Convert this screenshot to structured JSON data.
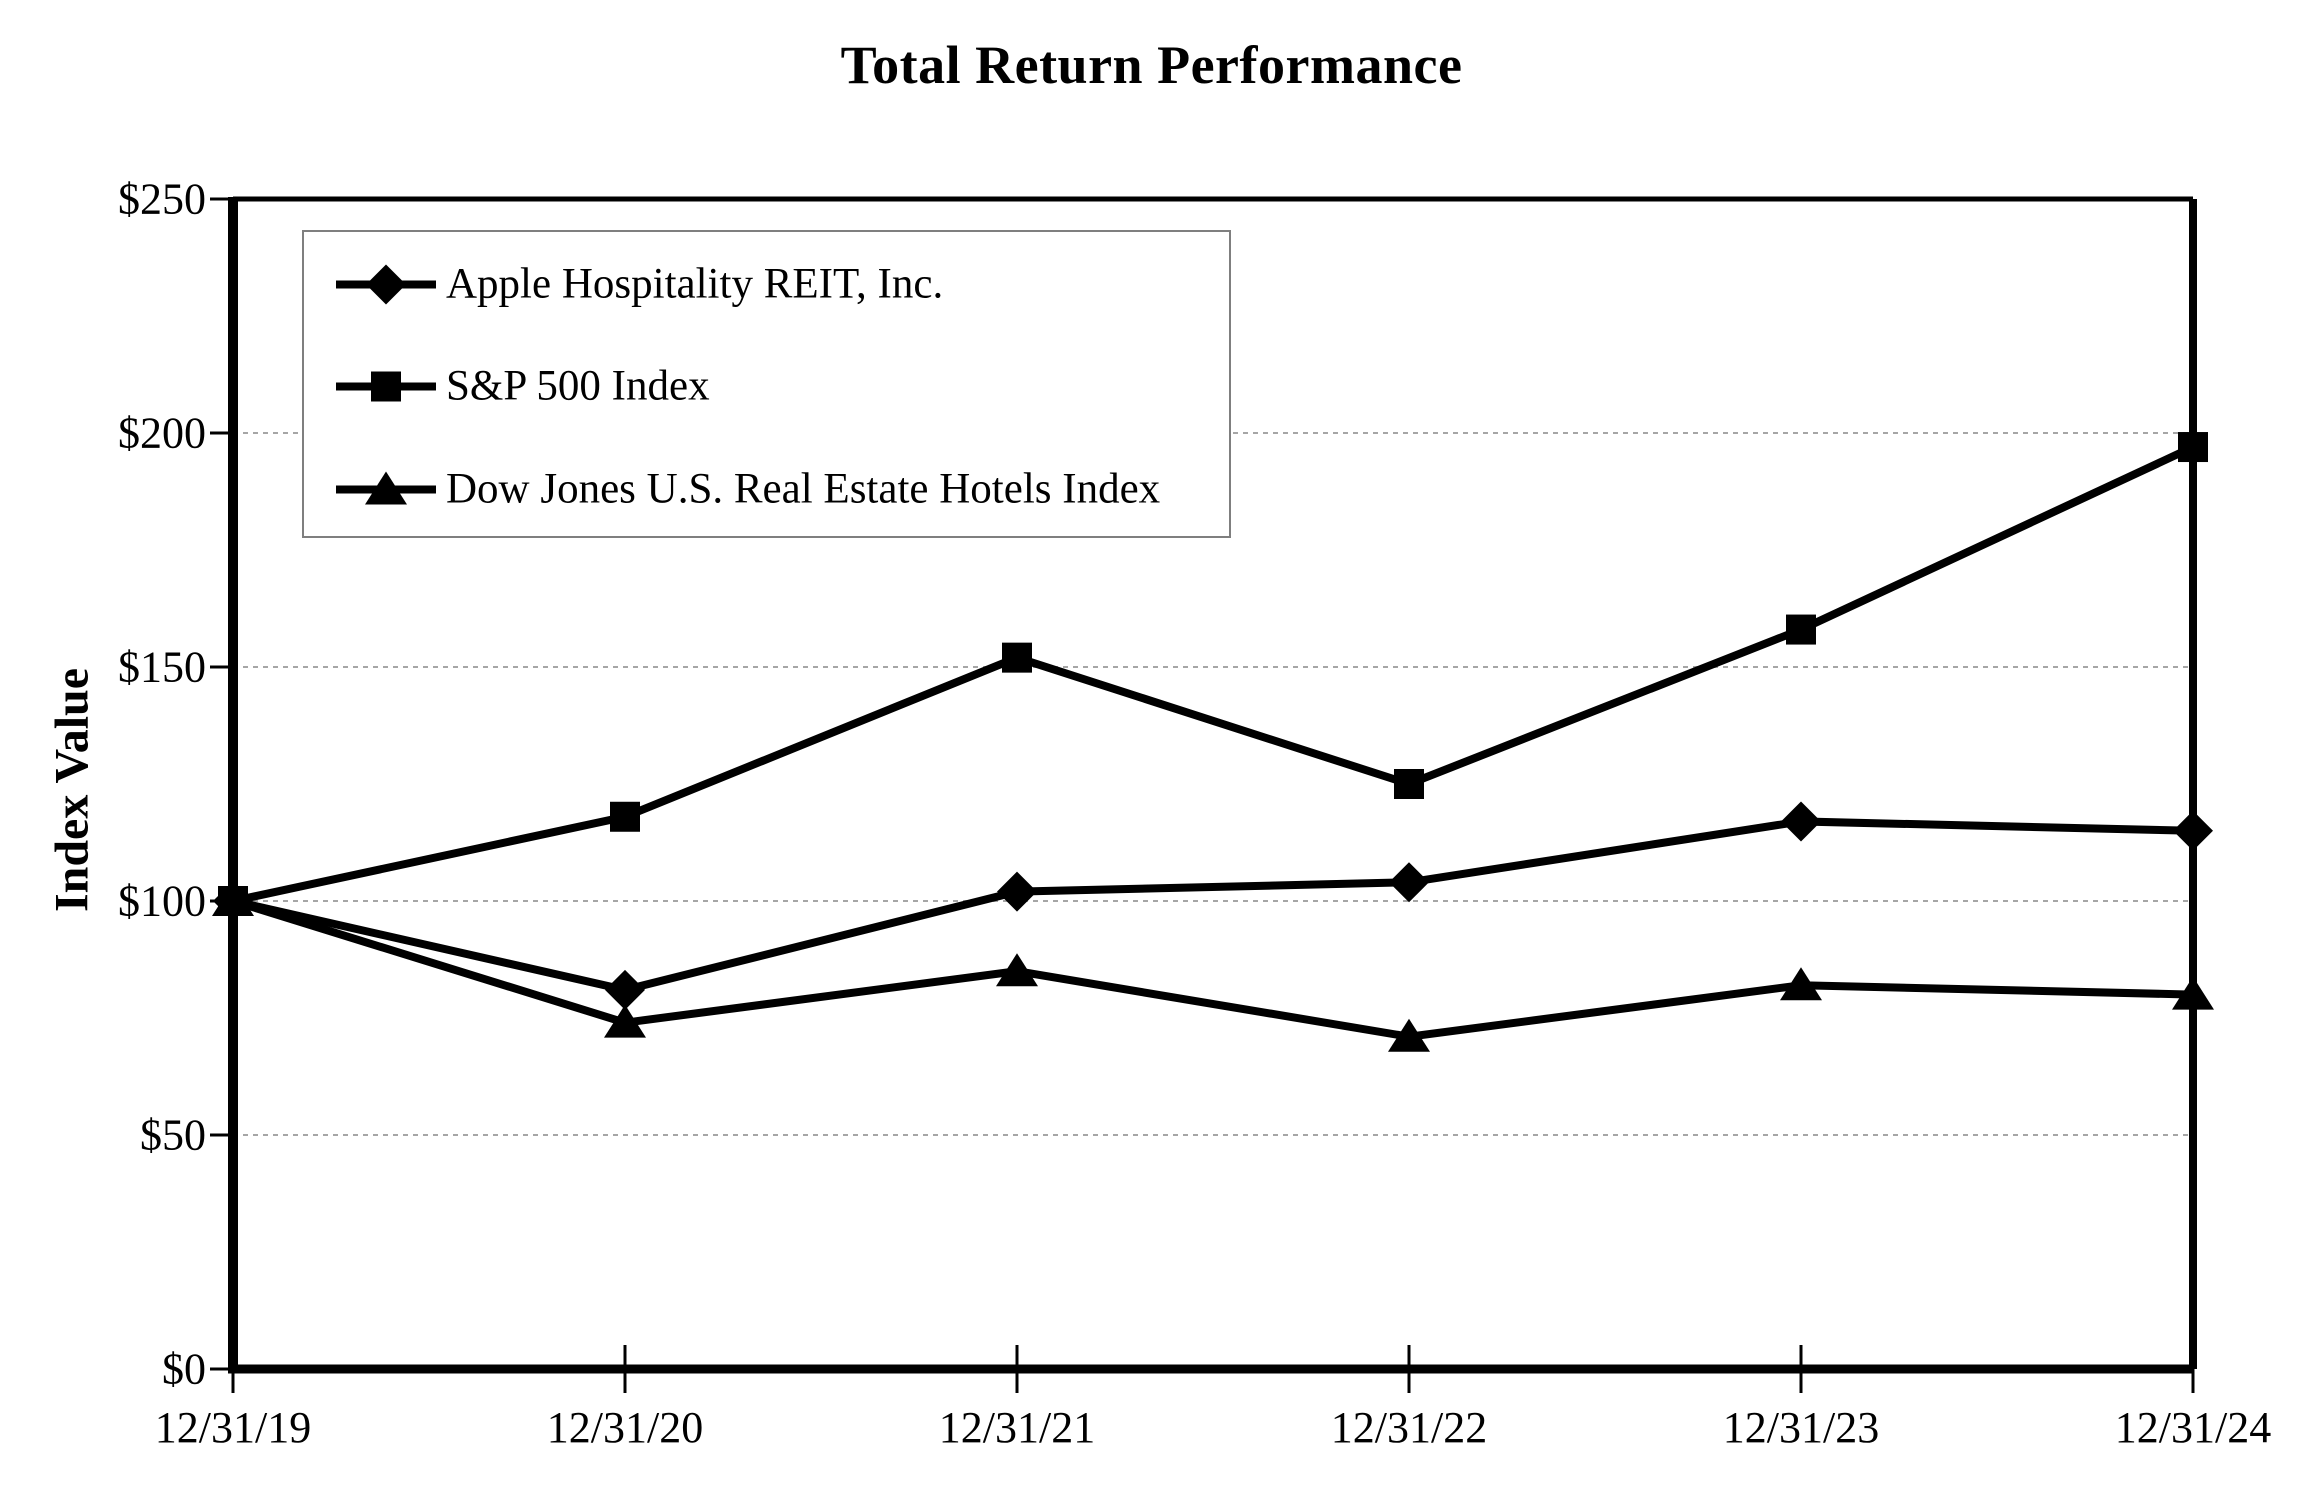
{
  "figure_title": "Total Return Performance",
  "chart_data": {
    "type": "line",
    "title": "Total Return Performance",
    "xlabel": "",
    "ylabel": "Index Value",
    "categories": [
      "12/31/19",
      "12/31/20",
      "12/31/21",
      "12/31/22",
      "12/31/23",
      "12/31/24"
    ],
    "series": [
      {
        "name": "Apple Hospitality REIT, Inc.",
        "marker": "diamond",
        "color": "#000000",
        "values": [
          100,
          81,
          102,
          104,
          117,
          115
        ]
      },
      {
        "name": "S&P 500 Index",
        "marker": "square",
        "color": "#000000",
        "values": [
          100,
          118,
          152,
          125,
          158,
          197
        ]
      },
      {
        "name": "Dow Jones U.S. Real Estate Hotels Index",
        "marker": "triangle",
        "color": "#000000",
        "values": [
          100,
          74,
          85,
          71,
          82,
          80
        ]
      }
    ],
    "ylim": [
      0,
      250
    ],
    "y_ticks": [
      "$250",
      "$200",
      "$150",
      "$100",
      "$50",
      "$0"
    ],
    "y_tick_values": [
      250,
      200,
      150,
      100,
      50,
      0
    ],
    "grid": "horizontal-dashed",
    "gridline_color": "#a6a6a6",
    "axis_color": "#000000",
    "legend_position": "top-left-inside",
    "legend_border_color": "#7f7f7f"
  }
}
